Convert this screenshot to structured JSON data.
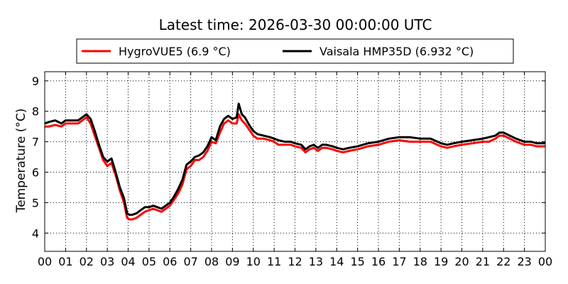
{
  "chart_data": {
    "type": "line",
    "title": "Latest time: 2026-03-30 00:00:00 UTC",
    "ylabel": "Temperature (°C)",
    "xlabel": "",
    "xlim": [
      0,
      24
    ],
    "ylim": [
      3.4,
      9.3
    ],
    "grid": true,
    "legend_position": "top",
    "x_ticks": [
      "00",
      "01",
      "02",
      "03",
      "04",
      "05",
      "06",
      "07",
      "08",
      "09",
      "10",
      "11",
      "12",
      "13",
      "14",
      "15",
      "16",
      "17",
      "18",
      "19",
      "20",
      "21",
      "22",
      "23",
      "00"
    ],
    "y_ticks": [
      "4",
      "5",
      "6",
      "7",
      "8",
      "9"
    ],
    "series": [
      {
        "name": "HygroVUE5 (6.9 °C)",
        "color": "#ff0000",
        "x": [
          0,
          0.2,
          0.5,
          0.8,
          1.0,
          1.3,
          1.6,
          1.8,
          2.0,
          2.2,
          2.4,
          2.6,
          2.8,
          3.0,
          3.2,
          3.4,
          3.6,
          3.8,
          3.95,
          4.05,
          4.2,
          4.4,
          4.6,
          4.8,
          5.0,
          5.2,
          5.4,
          5.6,
          5.8,
          6.0,
          6.2,
          6.4,
          6.6,
          6.8,
          7.0,
          7.2,
          7.4,
          7.6,
          7.8,
          8.0,
          8.2,
          8.4,
          8.6,
          8.8,
          9.0,
          9.2,
          9.3,
          9.45,
          9.6,
          9.8,
          10.0,
          10.2,
          10.5,
          10.8,
          11.0,
          11.2,
          11.5,
          11.8,
          12.0,
          12.3,
          12.5,
          12.7,
          12.9,
          13.1,
          13.3,
          13.5,
          13.8,
          14.0,
          14.3,
          14.6,
          15.0,
          15.5,
          16.0,
          16.5,
          17.0,
          17.5,
          18.0,
          18.5,
          19.0,
          19.3,
          19.6,
          20.0,
          20.5,
          21.0,
          21.3,
          21.6,
          21.8,
          22.0,
          22.3,
          22.6,
          23.0,
          23.3,
          23.6,
          24.0
        ],
        "values": [
          7.5,
          7.5,
          7.55,
          7.5,
          7.6,
          7.6,
          7.6,
          7.7,
          7.8,
          7.6,
          7.2,
          6.8,
          6.4,
          6.2,
          6.3,
          5.9,
          5.4,
          5.0,
          4.5,
          4.45,
          4.45,
          4.5,
          4.6,
          4.7,
          4.75,
          4.8,
          4.75,
          4.7,
          4.8,
          4.9,
          5.1,
          5.3,
          5.6,
          6.1,
          6.2,
          6.4,
          6.4,
          6.5,
          6.7,
          7.0,
          6.95,
          7.3,
          7.6,
          7.7,
          7.6,
          7.6,
          7.9,
          7.7,
          7.6,
          7.4,
          7.2,
          7.1,
          7.1,
          7.05,
          7.0,
          6.9,
          6.9,
          6.9,
          6.85,
          6.8,
          6.65,
          6.75,
          6.8,
          6.7,
          6.8,
          6.8,
          6.75,
          6.7,
          6.65,
          6.7,
          6.75,
          6.85,
          6.9,
          7.0,
          7.05,
          7.0,
          7.0,
          7.0,
          6.85,
          6.8,
          6.85,
          6.9,
          6.95,
          7.0,
          7.0,
          7.1,
          7.2,
          7.2,
          7.1,
          7.0,
          6.9,
          6.9,
          6.85,
          6.85
        ]
      },
      {
        "name": "Vaisala HMP35D (6.932 °C)",
        "color": "#000000",
        "x": [
          0,
          0.2,
          0.5,
          0.8,
          1.0,
          1.3,
          1.6,
          1.8,
          2.0,
          2.2,
          2.4,
          2.6,
          2.8,
          3.0,
          3.2,
          3.4,
          3.6,
          3.8,
          3.95,
          4.05,
          4.2,
          4.4,
          4.6,
          4.8,
          5.0,
          5.2,
          5.4,
          5.6,
          5.8,
          6.0,
          6.2,
          6.4,
          6.6,
          6.8,
          7.0,
          7.2,
          7.4,
          7.6,
          7.8,
          8.0,
          8.2,
          8.4,
          8.6,
          8.8,
          9.0,
          9.2,
          9.3,
          9.45,
          9.6,
          9.8,
          10.0,
          10.2,
          10.5,
          10.8,
          11.0,
          11.2,
          11.5,
          11.8,
          12.0,
          12.3,
          12.5,
          12.7,
          12.9,
          13.1,
          13.3,
          13.5,
          13.8,
          14.0,
          14.3,
          14.6,
          15.0,
          15.5,
          16.0,
          16.5,
          17.0,
          17.5,
          18.0,
          18.5,
          19.0,
          19.3,
          19.6,
          20.0,
          20.5,
          21.0,
          21.3,
          21.6,
          21.8,
          22.0,
          22.3,
          22.6,
          23.0,
          23.3,
          23.6,
          24.0
        ],
        "values": [
          7.6,
          7.65,
          7.7,
          7.6,
          7.7,
          7.7,
          7.7,
          7.8,
          7.9,
          7.75,
          7.35,
          6.9,
          6.5,
          6.35,
          6.45,
          6.0,
          5.5,
          5.15,
          4.65,
          4.6,
          4.6,
          4.65,
          4.75,
          4.85,
          4.85,
          4.9,
          4.85,
          4.8,
          4.9,
          5.0,
          5.2,
          5.45,
          5.75,
          6.25,
          6.35,
          6.5,
          6.55,
          6.65,
          6.85,
          7.15,
          7.05,
          7.5,
          7.75,
          7.85,
          7.75,
          7.8,
          8.25,
          7.9,
          7.8,
          7.55,
          7.35,
          7.25,
          7.2,
          7.15,
          7.1,
          7.05,
          7.0,
          7.0,
          6.95,
          6.9,
          6.75,
          6.85,
          6.9,
          6.8,
          6.9,
          6.9,
          6.85,
          6.8,
          6.75,
          6.8,
          6.85,
          6.95,
          7.0,
          7.1,
          7.15,
          7.15,
          7.1,
          7.1,
          6.95,
          6.9,
          6.95,
          7.0,
          7.05,
          7.1,
          7.15,
          7.2,
          7.3,
          7.3,
          7.2,
          7.1,
          7.0,
          7.0,
          6.95,
          6.95
        ]
      }
    ]
  }
}
